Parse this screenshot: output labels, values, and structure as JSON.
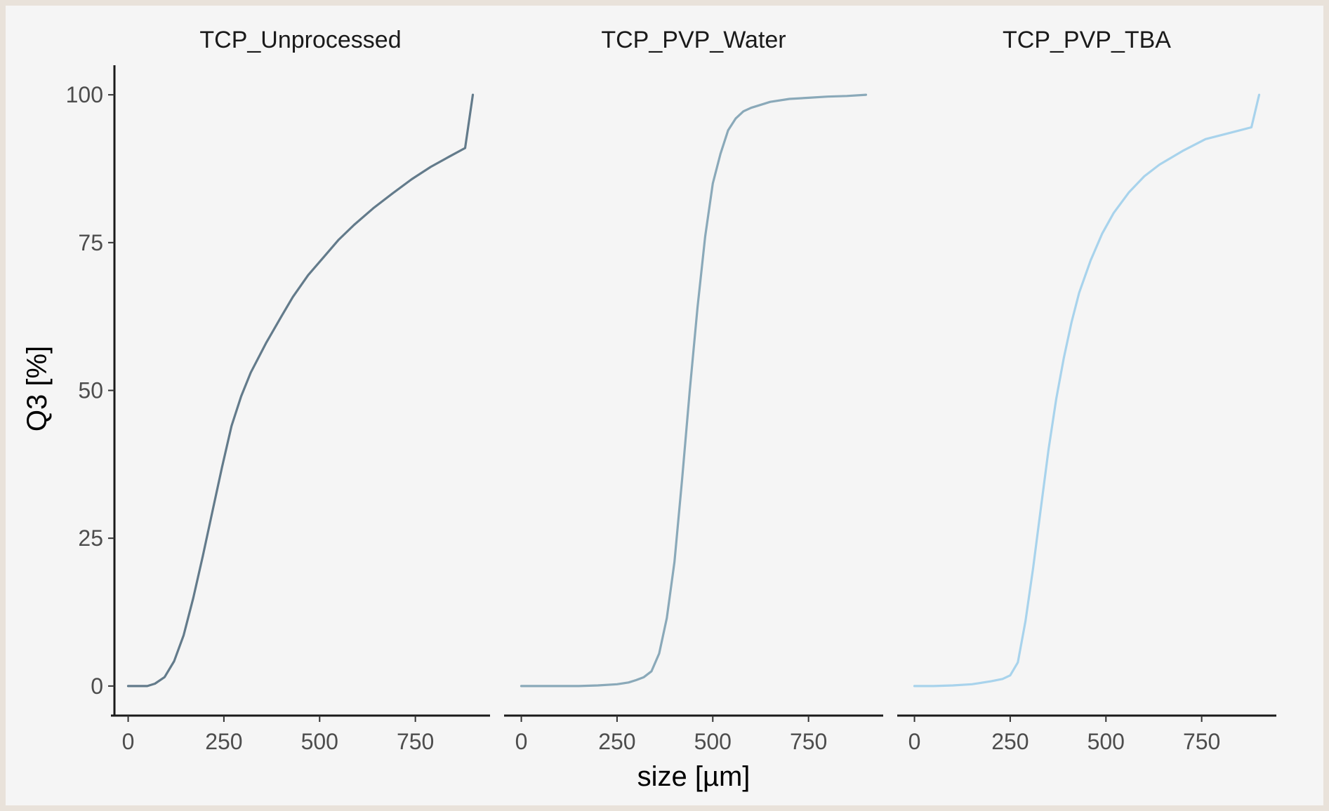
{
  "chart_data": {
    "type": "line",
    "xlabel": "size [µm]",
    "ylabel": "Q3 [%]",
    "xlim": [
      -45,
      945
    ],
    "ylim": [
      -5,
      105
    ],
    "xticks": [
      0,
      250,
      500,
      750
    ],
    "yticks": [
      0,
      25,
      50,
      75,
      100
    ],
    "grid": false,
    "panels": [
      {
        "title": "TCP_Unprocessed",
        "color": "#637b8b",
        "x": [
          0,
          25,
          50,
          70,
          95,
          120,
          145,
          170,
          195,
          220,
          245,
          270,
          295,
          320,
          360,
          400,
          430,
          470,
          510,
          550,
          590,
          640,
          690,
          740,
          790,
          840,
          880,
          900
        ],
        "y": [
          0,
          0,
          0,
          0.4,
          1.5,
          4.2,
          8.6,
          14.9,
          22.0,
          29.5,
          37.0,
          44.0,
          49.0,
          53.0,
          58.0,
          62.5,
          65.8,
          69.5,
          72.5,
          75.5,
          78.0,
          80.8,
          83.3,
          85.7,
          87.8,
          89.6,
          91.0,
          100
        ]
      },
      {
        "title": "TCP_PVP_Water",
        "color": "#8aa9b9",
        "x": [
          0,
          50,
          100,
          150,
          200,
          250,
          280,
          300,
          320,
          340,
          360,
          380,
          400,
          420,
          440,
          460,
          480,
          500,
          520,
          540,
          560,
          580,
          600,
          620,
          650,
          700,
          750,
          800,
          850,
          900
        ],
        "y": [
          0,
          0,
          0,
          0,
          0.1,
          0.3,
          0.6,
          1.0,
          1.5,
          2.5,
          5.5,
          11.5,
          21.0,
          35.0,
          50.0,
          64.0,
          76.0,
          85.0,
          90.0,
          94.0,
          96.0,
          97.2,
          97.8,
          98.2,
          98.8,
          99.3,
          99.5,
          99.7,
          99.8,
          100
        ]
      },
      {
        "title": "TCP_PVP_TBA",
        "color": "#a8d3ec",
        "x": [
          0,
          50,
          100,
          150,
          200,
          230,
          250,
          270,
          290,
          310,
          330,
          350,
          370,
          390,
          410,
          430,
          460,
          490,
          520,
          560,
          600,
          640,
          700,
          760,
          820,
          880,
          900
        ],
        "y": [
          0,
          0,
          0.1,
          0.3,
          0.8,
          1.2,
          1.8,
          4.0,
          11.0,
          20.0,
          30.0,
          40.0,
          48.5,
          55.5,
          61.5,
          66.5,
          72.0,
          76.5,
          80.0,
          83.5,
          86.2,
          88.2,
          90.5,
          92.5,
          93.5,
          94.5,
          100
        ]
      }
    ]
  }
}
